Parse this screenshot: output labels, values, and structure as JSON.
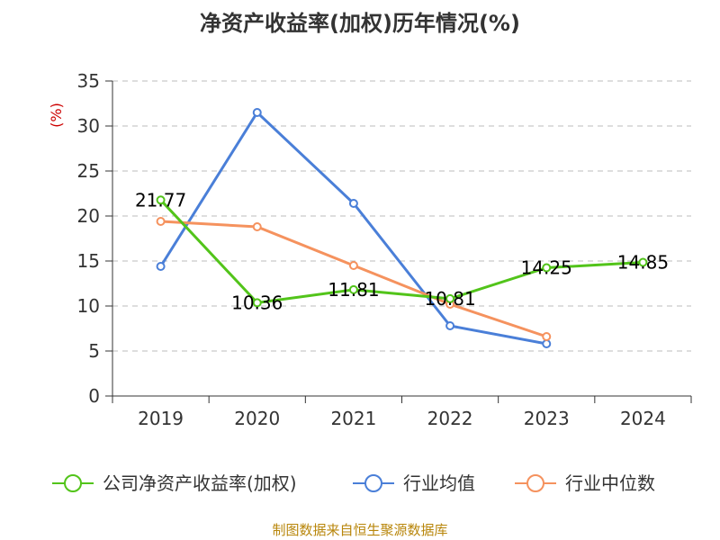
{
  "chart_data": {
    "type": "line",
    "title": "净资产收益率(加权)历年情况(%)",
    "ylabel": "(%)",
    "xlabel": "",
    "ylim": [
      0,
      35
    ],
    "yticks": [
      0,
      5,
      10,
      15,
      20,
      25,
      30,
      35
    ],
    "categories": [
      "2019",
      "2020",
      "2021",
      "2022",
      "2023",
      "2024"
    ],
    "grid": true,
    "legend_position": "bottom",
    "series": [
      {
        "name": "公司净资产收益率(加权)",
        "color": "#52c41a",
        "values": [
          21.77,
          10.36,
          11.81,
          10.81,
          14.25,
          14.85
        ],
        "labels": [
          "21.77",
          "10.36",
          "11.81",
          "10.81",
          "14.25",
          "14.85"
        ]
      },
      {
        "name": "行业均值",
        "color": "#4a7fd8",
        "values": [
          14.4,
          31.5,
          21.4,
          7.8,
          5.8,
          null
        ]
      },
      {
        "name": "行业中位数",
        "color": "#f5925e",
        "values": [
          19.4,
          18.8,
          14.5,
          10.2,
          6.6,
          null
        ]
      }
    ]
  },
  "source": "制图数据来自恒生聚源数据库"
}
